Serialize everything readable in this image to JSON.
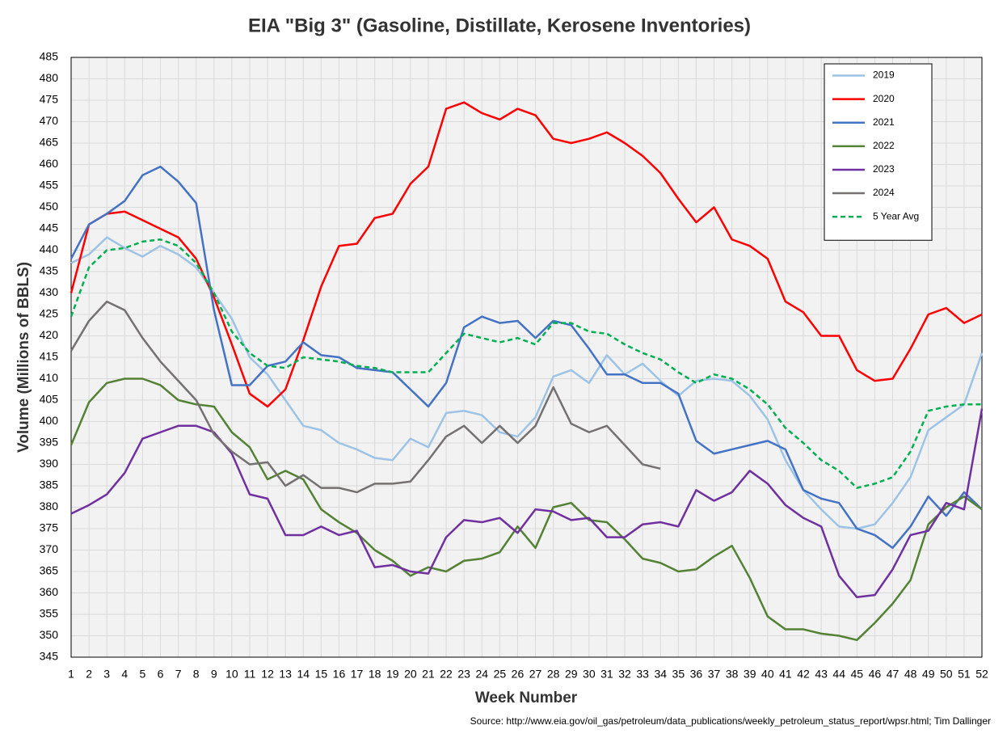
{
  "chart_data": {
    "type": "line",
    "title": "EIA \"Big 3\" (Gasoline, Distillate, Kerosene Inventories)",
    "x_label": "Week Number",
    "y_label": "Volume (Millions of BBLS)",
    "source": "Source: http://www.eia.gov/oil_gas/petroleum/data_publications/weekly_petroleum_status_report/wpsr.html; Tim Dallinger",
    "x": [
      1,
      2,
      3,
      4,
      5,
      6,
      7,
      8,
      9,
      10,
      11,
      12,
      13,
      14,
      15,
      16,
      17,
      18,
      19,
      20,
      21,
      22,
      23,
      24,
      25,
      26,
      27,
      28,
      29,
      30,
      31,
      32,
      33,
      34,
      35,
      36,
      37,
      38,
      39,
      40,
      41,
      42,
      43,
      44,
      45,
      46,
      47,
      48,
      49,
      50,
      51,
      52
    ],
    "xlim": [
      1,
      52
    ],
    "xticks": [
      1,
      2,
      3,
      4,
      5,
      6,
      7,
      8,
      9,
      10,
      11,
      12,
      13,
      14,
      15,
      16,
      17,
      18,
      19,
      20,
      21,
      22,
      23,
      24,
      25,
      26,
      27,
      28,
      29,
      30,
      31,
      32,
      33,
      34,
      35,
      36,
      37,
      38,
      39,
      40,
      41,
      42,
      43,
      44,
      45,
      46,
      47,
      48,
      49,
      50,
      51,
      52
    ],
    "ylim": [
      345,
      485
    ],
    "yticks": [
      345,
      350,
      355,
      360,
      365,
      370,
      375,
      380,
      385,
      390,
      395,
      400,
      405,
      410,
      415,
      420,
      425,
      430,
      435,
      440,
      445,
      450,
      455,
      460,
      465,
      470,
      475,
      480,
      485
    ],
    "grid": true,
    "legend": "upper right",
    "series": [
      {
        "name": "2019",
        "color": "#9dc3e6",
        "dashed": false,
        "values": [
          437,
          439,
          443,
          440.5,
          438.5,
          441,
          439,
          436,
          430,
          424,
          415,
          411,
          405,
          399,
          398,
          395,
          393.5,
          391.5,
          391,
          396,
          394,
          402,
          402.5,
          401.5,
          397.5,
          396.5,
          401,
          410.5,
          412,
          409,
          415.5,
          411,
          413.5,
          409.5,
          406,
          409.5,
          410,
          409.5,
          406,
          400.5,
          391,
          384,
          379.5,
          375.5,
          375,
          376,
          381,
          387,
          398,
          401,
          404,
          416
        ]
      },
      {
        "name": "2020",
        "color": "#ff0000",
        "dashed": false,
        "values": [
          430,
          446,
          448.5,
          449,
          447,
          445,
          443,
          438,
          429,
          418,
          406.5,
          403.5,
          407.5,
          419,
          431.5,
          441,
          441.5,
          447.5,
          448.5,
          455.5,
          459.5,
          473,
          474.5,
          472,
          470.5,
          473,
          471.5,
          466,
          465,
          466,
          467.5,
          465,
          462,
          458,
          452,
          446.5,
          450,
          442.5,
          441,
          438,
          428,
          425.5,
          420,
          420,
          412,
          409.5,
          410,
          417,
          425,
          426.5,
          423,
          425
        ]
      },
      {
        "name": "2021",
        "color": "#4472c4",
        "dashed": false,
        "values": [
          438,
          446,
          448.5,
          451.5,
          457.5,
          459.5,
          456,
          451,
          426,
          408.5,
          408.5,
          413,
          414,
          418.5,
          415.5,
          415,
          412.5,
          412,
          411.5,
          407.5,
          403.5,
          409,
          422,
          424.5,
          423,
          423.5,
          419.5,
          423.5,
          422.5,
          417,
          411,
          411,
          409,
          409,
          406.5,
          395.5,
          392.5,
          393.5,
          394.5,
          395.5,
          393.5,
          384,
          382,
          381,
          375,
          373.5,
          370.5,
          375.5,
          382.5,
          378,
          383.5,
          379.5
        ]
      },
      {
        "name": "2022",
        "color": "#548235",
        "dashed": false,
        "values": [
          394.5,
          404.5,
          409,
          410,
          410,
          408.5,
          405,
          404,
          403.5,
          397.5,
          394,
          386.5,
          388.5,
          386.5,
          379.5,
          376.5,
          374,
          370,
          367.5,
          364,
          366,
          365,
          367.5,
          368,
          369.5,
          375.5,
          370.5,
          380,
          381,
          377,
          376.5,
          372.5,
          368,
          367,
          365,
          365.5,
          368.5,
          371,
          363.5,
          354.5,
          351.5,
          351.5,
          350.5,
          350,
          349,
          353,
          357.5,
          363,
          376,
          380,
          382.5,
          379.5
        ]
      },
      {
        "name": "2023",
        "color": "#7030a0",
        "dashed": false,
        "values": [
          378.5,
          380.5,
          383,
          388,
          396,
          397.5,
          399,
          399,
          397.5,
          392.5,
          383,
          382,
          373.5,
          373.5,
          375.5,
          373.5,
          374.5,
          366,
          366.5,
          365,
          364.5,
          373,
          377,
          376.5,
          377.5,
          374,
          379.5,
          379,
          377,
          377.5,
          373,
          373,
          376,
          376.5,
          375.5,
          384,
          381.5,
          383.5,
          388.5,
          385.5,
          380.5,
          377.5,
          375.5,
          364,
          359,
          359.5,
          365.5,
          373.5,
          374.5,
          381,
          379.5,
          403
        ]
      },
      {
        "name": "2024",
        "color": "#767171",
        "dashed": false,
        "values": [
          416.5,
          423.5,
          428,
          426,
          419.5,
          414,
          409.5,
          405,
          397,
          393,
          390,
          390.5,
          385,
          387.5,
          384.5,
          384.5,
          383.5,
          385.5,
          385.5,
          386,
          391,
          396.5,
          399,
          395,
          399,
          395,
          399,
          408,
          399.5,
          397.5,
          399,
          394.5,
          390,
          389,
          null,
          null,
          null,
          null,
          null,
          null,
          null,
          null,
          null,
          null,
          null,
          null,
          null,
          null,
          null,
          null,
          null,
          null
        ]
      },
      {
        "name": "5 Year Avg",
        "color": "#00b050",
        "dashed": true,
        "values": [
          424.5,
          436,
          440,
          440.5,
          442,
          442.5,
          441,
          437,
          430,
          421,
          416,
          413,
          412.5,
          415,
          414.5,
          414,
          413,
          412.5,
          411.5,
          411.5,
          411.5,
          416,
          420.5,
          419.5,
          418.5,
          419.5,
          418,
          423,
          423,
          421,
          420.5,
          418,
          416,
          414.5,
          411.5,
          409,
          411,
          410,
          407.5,
          404,
          398.5,
          395,
          391,
          388.5,
          384.5,
          385.5,
          387,
          393,
          402.5,
          403.5,
          404,
          404
        ]
      }
    ]
  }
}
